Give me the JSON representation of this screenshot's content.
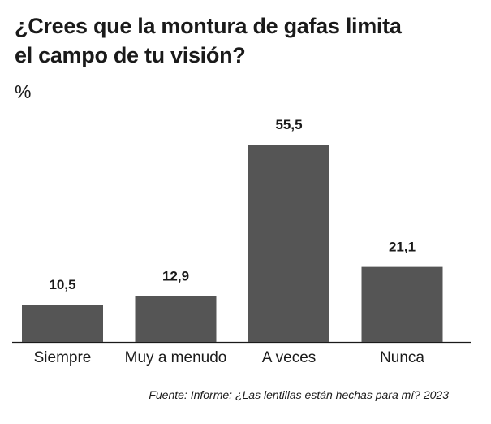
{
  "chart_data": {
    "type": "bar",
    "title_lines": [
      "¿Crees que la montura de gafas limita",
      "el campo de tu visión?"
    ],
    "unit_label": "%",
    "categories": [
      "Siempre",
      "Muy a menudo",
      "A veces",
      "Nunca"
    ],
    "values": [
      10.5,
      12.9,
      55.5,
      21.1
    ],
    "value_labels": [
      "10,5",
      "12,9",
      "55,5",
      "21,1"
    ],
    "ylim": [
      0,
      60
    ],
    "grid": false,
    "bar_color": "#555555",
    "source": "Fuente: Informe: ¿Las lentillas están hechas para mí? 2023"
  }
}
